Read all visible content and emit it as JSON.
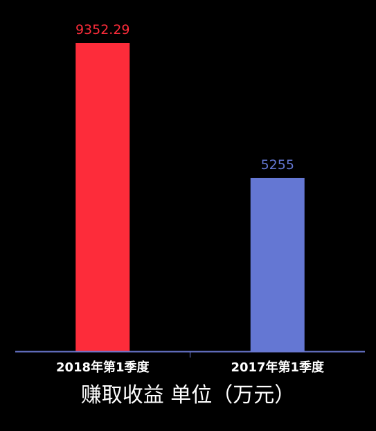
{
  "chart_data": {
    "type": "bar",
    "categories": [
      "2018年第1季度",
      "2017年第1季度"
    ],
    "values": [
      9352.29,
      5255
    ],
    "value_labels": [
      "9352.29",
      "5255"
    ],
    "colors": [
      "#fd2c3a",
      "#6477d3"
    ],
    "axis_color": "#6a78d0",
    "title": "",
    "xlabel": "赚取收益 单位（万元）",
    "ylabel": "",
    "ylim": [
      0,
      9352.29
    ],
    "grid": false,
    "legend": "none"
  }
}
